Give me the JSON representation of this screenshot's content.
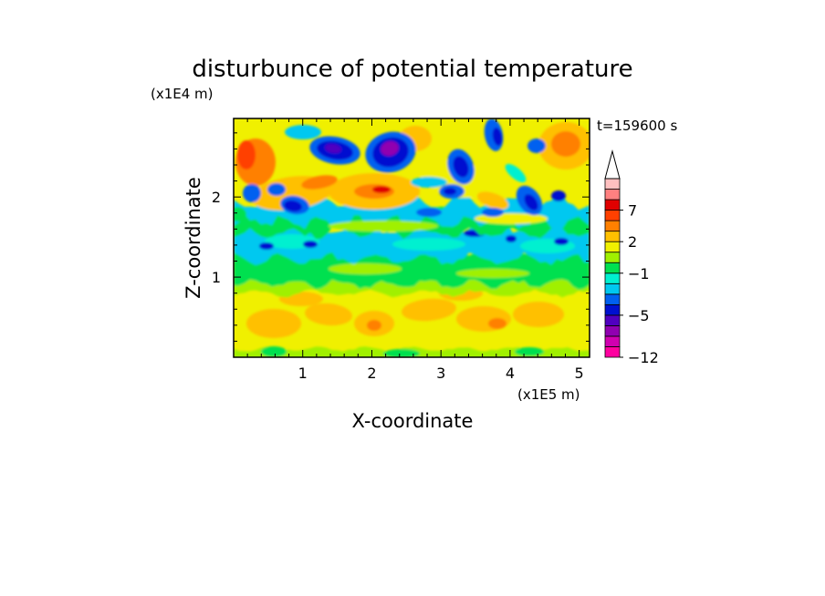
{
  "chart_data": {
    "type": "heatmap",
    "title": "disturbunce of potential temperature",
    "xlabel": "X-coordinate",
    "ylabel": "Z-coordinate",
    "x_unit": "(x1E5 m)",
    "y_unit": "(x1E4 m)",
    "time_label": "t=159600 s",
    "xlim": [
      0,
      5.15
    ],
    "ylim": [
      0,
      2.98
    ],
    "x_ticks": [
      1,
      2,
      3,
      4,
      5
    ],
    "y_ticks": [
      1,
      2
    ],
    "colorbar": {
      "levels": [
        -12,
        -11,
        -9,
        -7,
        -5,
        -4,
        -3,
        -2,
        -1,
        0,
        1,
        2,
        3,
        5,
        7,
        9,
        11
      ],
      "labels": [
        {
          "value": -12,
          "text": "-12"
        },
        {
          "value": -5,
          "text": "-5"
        },
        {
          "value": -1,
          "text": "-1"
        },
        {
          "value": 2,
          "text": "2"
        },
        {
          "value": 7,
          "text": "7"
        }
      ],
      "colors": [
        "#ff00a0",
        "#d000b0",
        "#9000b0",
        "#5000c0",
        "#0010d0",
        "#0060f0",
        "#00c8f0",
        "#00f0d0",
        "#00e050",
        "#a0f000",
        "#f0f000",
        "#ffc000",
        "#ff8000",
        "#ff4000",
        "#e00000",
        "#ff8080",
        "#ffc0c0"
      ],
      "extend": "max"
    }
  }
}
